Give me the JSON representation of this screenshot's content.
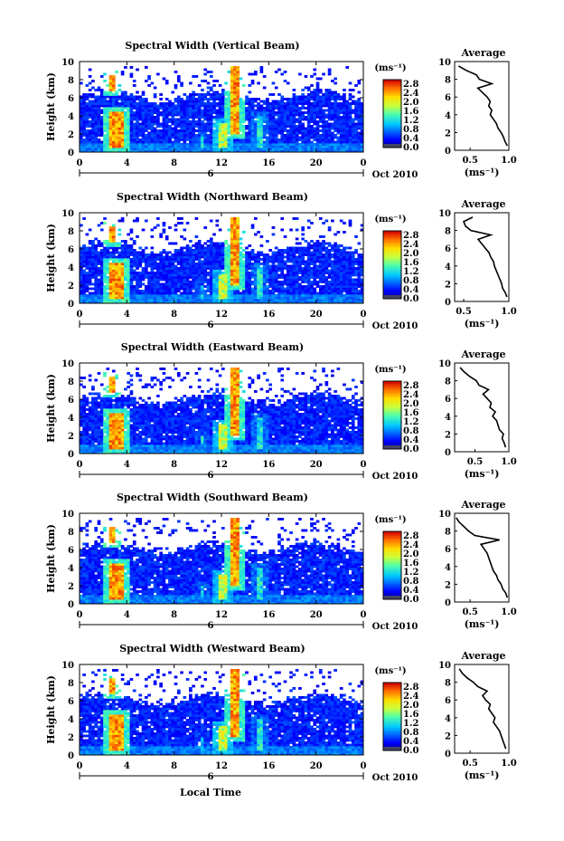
{
  "chart_data": {
    "type": "heatmap",
    "xlabel": "Local Time",
    "date_label": "Oct 2010",
    "day_label": "6",
    "x_ticks": [
      "0",
      "4",
      "8",
      "12",
      "16",
      "20",
      "0"
    ],
    "xlim": [
      0,
      24
    ],
    "ylabel": "Height (km)",
    "y_ticks": [
      "0",
      "2",
      "4",
      "6",
      "8",
      "10"
    ],
    "ylim": [
      0,
      10
    ],
    "colorbar": {
      "unit": "(ms⁻¹)",
      "ticks": [
        "0.0",
        "0.4",
        "0.8",
        "1.2",
        "1.6",
        "2.0",
        "2.4",
        "2.8"
      ],
      "range": [
        0.0,
        3.0
      ]
    },
    "profile": {
      "title": "Average",
      "xlabel": "(ms⁻¹)",
      "ylabel_ticks": [
        "0",
        "2",
        "4",
        "6",
        "8",
        "10"
      ]
    },
    "panels": [
      {
        "title": "Spectral Width (Vertical Beam)",
        "profile_ticks": [
          "0.5",
          "1.0"
        ],
        "profile_xlim": [
          0.3,
          1.0
        ],
        "avg_height": [
          0.5,
          1,
          1.5,
          2,
          2.5,
          3,
          3.5,
          4,
          4.5,
          5,
          5.5,
          6,
          6.5,
          7,
          7.5,
          8,
          8.5,
          9,
          9.5
        ],
        "avg_width": [
          0.98,
          0.95,
          0.93,
          0.9,
          0.86,
          0.84,
          0.8,
          0.76,
          0.78,
          0.74,
          0.76,
          0.72,
          0.66,
          0.6,
          0.78,
          0.62,
          0.58,
          0.45,
          0.35
        ]
      },
      {
        "title": "Spectral Width (Northward Beam)",
        "profile_ticks": [
          "0.5",
          "1.0"
        ],
        "profile_xlim": [
          0.4,
          1.0
        ],
        "avg_height": [
          0.5,
          1,
          1.5,
          2,
          2.5,
          3,
          3.5,
          4,
          4.5,
          5,
          5.5,
          6,
          6.5,
          7,
          7.5,
          8,
          8.5,
          9,
          9.5
        ],
        "avg_width": [
          0.98,
          0.96,
          0.93,
          0.92,
          0.9,
          0.88,
          0.86,
          0.84,
          0.83,
          0.8,
          0.78,
          0.74,
          0.7,
          0.66,
          0.8,
          0.58,
          0.52,
          0.5,
          0.6
        ]
      },
      {
        "title": "Spectral Width (Eastward Beam)",
        "profile_ticks": [
          "0.5",
          "1.0"
        ],
        "profile_xlim": [
          0.2,
          1.0
        ],
        "avg_height": [
          0.5,
          1,
          1.5,
          2,
          2.5,
          3,
          3.5,
          4,
          4.5,
          5,
          5.5,
          6,
          6.5,
          7,
          7.5,
          8,
          8.5,
          9,
          9.5
        ],
        "avg_width": [
          0.95,
          0.93,
          0.9,
          0.92,
          0.86,
          0.84,
          0.82,
          0.76,
          0.8,
          0.72,
          0.74,
          0.68,
          0.62,
          0.7,
          0.56,
          0.52,
          0.42,
          0.34,
          0.28
        ]
      },
      {
        "title": "Spectral Width (Southward Beam)",
        "profile_ticks": [
          "0.5",
          "1.0"
        ],
        "profile_xlim": [
          0.3,
          1.0
        ],
        "avg_height": [
          0.5,
          1,
          1.5,
          2,
          2.5,
          3,
          3.5,
          4,
          4.5,
          5,
          5.5,
          6,
          6.5,
          7,
          7.5,
          8,
          8.5,
          9,
          9.5
        ],
        "avg_width": [
          0.98,
          0.96,
          0.92,
          0.9,
          0.86,
          0.84,
          0.8,
          0.78,
          0.76,
          0.74,
          0.72,
          0.68,
          0.64,
          0.88,
          0.56,
          0.48,
          0.42,
          0.36,
          0.32
        ]
      },
      {
        "title": "Spectral Width (Westward Beam)",
        "profile_ticks": [
          "0.5",
          "1.0"
        ],
        "profile_xlim": [
          0.3,
          1.0
        ],
        "avg_height": [
          0.5,
          1,
          1.5,
          2,
          2.5,
          3,
          3.5,
          4,
          4.5,
          5,
          5.5,
          6,
          6.5,
          7,
          7.5,
          8,
          8.5,
          9,
          9.5
        ],
        "avg_width": [
          0.96,
          0.94,
          0.92,
          0.9,
          0.88,
          0.84,
          0.8,
          0.82,
          0.78,
          0.74,
          0.76,
          0.7,
          0.66,
          0.72,
          0.6,
          0.54,
          0.46,
          0.4,
          0.36
        ]
      }
    ],
    "high_width_events": [
      {
        "time_start": 2.6,
        "time_end": 3.8,
        "height_min": 0.4,
        "height_max": 4.6,
        "value": 2.8
      },
      {
        "time_start": 2.5,
        "time_end": 2.9,
        "height_min": 6.8,
        "height_max": 8.5,
        "value": 2.8
      },
      {
        "time_start": 11.7,
        "time_end": 12.4,
        "height_min": 0.6,
        "height_max": 3.2,
        "value": 2.2
      },
      {
        "time_start": 12.8,
        "time_end": 13.5,
        "height_min": 2.0,
        "height_max": 9.5,
        "value": 2.8
      },
      {
        "time_start": 15.0,
        "time_end": 15.6,
        "height_min": 0.6,
        "height_max": 4.0,
        "value": 1.6
      },
      {
        "time_start": 10.2,
        "time_end": 10.6,
        "height_min": 0.6,
        "height_max": 2.0,
        "value": 1.4
      }
    ],
    "grid": false
  }
}
